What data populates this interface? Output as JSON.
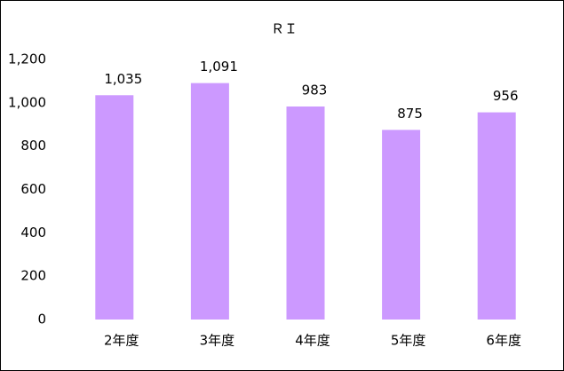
{
  "chart_data": {
    "type": "bar",
    "title": "ＲＩ",
    "categories": [
      "2年度",
      "3年度",
      "4年度",
      "5年度",
      "6年度"
    ],
    "values": [
      1035,
      1091,
      983,
      875,
      956
    ],
    "value_labels": [
      "1,035",
      "1,091",
      "983",
      "875",
      "956"
    ],
    "color": "#cc99ff",
    "ylim": [
      0,
      1200
    ],
    "yticks": [
      0,
      200,
      400,
      600,
      800,
      {
        "value": 1000,
        "label": "1,000"
      },
      {
        "value": 1200,
        "label": "1,200"
      }
    ],
    "grid": false
  }
}
